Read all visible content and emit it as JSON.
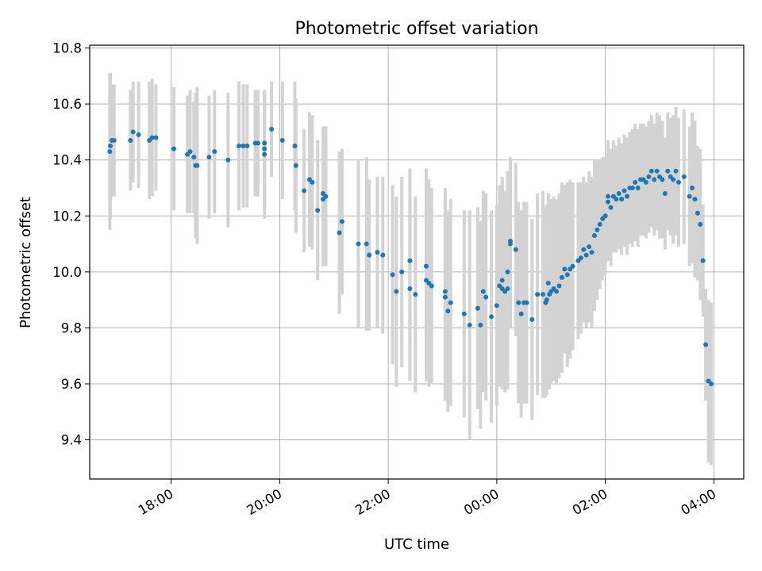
{
  "chart_data": {
    "type": "scatter",
    "title": "Photometric offset variation",
    "xlabel": "UTC time",
    "ylabel": "Photometric offset",
    "x_unit": "hours",
    "xlim": [
      16.5,
      28.55
    ],
    "ylim": [
      9.26,
      10.81
    ],
    "x_ticks": [
      {
        "value": 18,
        "label": "18:00"
      },
      {
        "value": 20,
        "label": "20:00"
      },
      {
        "value": 22,
        "label": "22:00"
      },
      {
        "value": 24,
        "label": "00:00"
      },
      {
        "value": 26,
        "label": "02:00"
      },
      {
        "value": 28,
        "label": "04:00"
      }
    ],
    "y_ticks": [
      {
        "value": 9.4,
        "label": "9.4"
      },
      {
        "value": 9.6,
        "label": "9.6"
      },
      {
        "value": 9.8,
        "label": "9.8"
      },
      {
        "value": 10.0,
        "label": "10.0"
      },
      {
        "value": 10.2,
        "label": "10.2"
      },
      {
        "value": 10.4,
        "label": "10.4"
      },
      {
        "value": 10.6,
        "label": "10.6"
      },
      {
        "value": 10.8,
        "label": "10.8"
      }
    ],
    "grid": true,
    "colors": {
      "points": "#1f77b4",
      "errorbars": "#d3d3d3",
      "grid": "#b0b0b0"
    },
    "series": [
      {
        "points": [
          [
            16.87,
            10.43,
            0.28
          ],
          [
            16.88,
            10.45,
            0.26
          ],
          [
            16.91,
            10.47,
            0.2
          ],
          [
            16.95,
            10.47,
            0.2
          ],
          [
            17.25,
            10.47,
            0.18
          ],
          [
            17.3,
            10.5,
            0.18
          ],
          [
            17.4,
            10.49,
            0.19
          ],
          [
            17.6,
            10.47,
            0.21
          ],
          [
            17.65,
            10.48,
            0.21
          ],
          [
            17.72,
            10.48,
            0.19
          ],
          [
            18.05,
            10.44,
            0.22
          ],
          [
            18.3,
            10.42,
            0.21
          ],
          [
            18.35,
            10.43,
            0.22
          ],
          [
            18.42,
            10.41,
            0.2
          ],
          [
            18.45,
            10.38,
            0.26
          ],
          [
            18.48,
            10.38,
            0.28
          ],
          [
            18.7,
            10.41,
            0.22
          ],
          [
            18.8,
            10.43,
            0.22
          ],
          [
            19.05,
            10.4,
            0.24
          ],
          [
            19.25,
            10.45,
            0.23
          ],
          [
            19.33,
            10.45,
            0.22
          ],
          [
            19.4,
            10.45,
            0.22
          ],
          [
            19.55,
            10.46,
            0.19
          ],
          [
            19.6,
            10.46,
            0.19
          ],
          [
            19.72,
            10.42,
            0.23
          ],
          [
            19.72,
            10.44,
            0.21
          ],
          [
            19.72,
            10.46,
            0.19
          ],
          [
            19.85,
            10.51,
            0.17
          ],
          [
            20.05,
            10.47,
            0.21
          ],
          [
            20.28,
            10.45,
            0.23
          ],
          [
            20.3,
            10.38,
            0.24
          ],
          [
            20.45,
            10.29,
            0.22
          ],
          [
            20.55,
            10.33,
            0.24
          ],
          [
            20.6,
            10.32,
            0.24
          ],
          [
            20.7,
            10.22,
            0.25
          ],
          [
            20.8,
            10.26,
            0.24
          ],
          [
            20.85,
            10.27,
            0.25
          ],
          [
            20.8,
            10.28,
            0.24
          ],
          [
            21.1,
            10.14,
            0.29
          ],
          [
            21.15,
            10.18,
            0.26
          ],
          [
            21.45,
            10.1,
            0.3
          ],
          [
            21.6,
            10.1,
            0.31
          ],
          [
            21.65,
            10.06,
            0.27
          ],
          [
            21.8,
            10.07,
            0.27
          ],
          [
            21.9,
            10.06,
            0.28
          ],
          [
            22.08,
            9.99,
            0.32
          ],
          [
            22.15,
            9.93,
            0.34
          ],
          [
            22.25,
            10.0,
            0.34
          ],
          [
            22.4,
            10.04,
            0.33
          ],
          [
            22.4,
            9.94,
            0.33
          ],
          [
            22.5,
            9.92,
            0.35
          ],
          [
            22.7,
            9.97,
            0.36
          ],
          [
            22.7,
            10.02,
            0.35
          ],
          [
            22.75,
            9.96,
            0.37
          ],
          [
            22.8,
            9.95,
            0.35
          ],
          [
            23.05,
            9.91,
            0.37
          ],
          [
            23.05,
            9.93,
            0.37
          ],
          [
            23.1,
            9.86,
            0.36
          ],
          [
            23.15,
            9.89,
            0.37
          ],
          [
            23.4,
            9.85,
            0.37
          ],
          [
            23.5,
            9.81,
            0.41
          ],
          [
            23.65,
            9.87,
            0.36
          ],
          [
            23.7,
            9.81,
            0.37
          ],
          [
            23.75,
            9.93,
            0.36
          ],
          [
            23.8,
            9.91,
            0.37
          ],
          [
            23.9,
            9.84,
            0.38
          ],
          [
            24.0,
            9.88,
            0.36
          ],
          [
            24.05,
            9.95,
            0.36
          ],
          [
            24.1,
            9.97,
            0.37
          ],
          [
            24.1,
            9.94,
            0.36
          ],
          [
            24.15,
            9.93,
            0.36
          ],
          [
            24.2,
            10.0,
            0.36
          ],
          [
            24.2,
            9.94,
            0.36
          ],
          [
            24.25,
            10.11,
            0.3
          ],
          [
            24.25,
            10.1,
            0.3
          ],
          [
            24.35,
            10.08,
            0.31
          ],
          [
            24.4,
            9.89,
            0.36
          ],
          [
            24.45,
            9.85,
            0.37
          ],
          [
            24.5,
            9.89,
            0.36
          ],
          [
            24.55,
            9.89,
            0.36
          ],
          [
            24.65,
            9.83,
            0.36
          ],
          [
            24.75,
            9.92,
            0.36
          ],
          [
            24.85,
            9.92,
            0.37
          ],
          [
            24.9,
            9.89,
            0.34
          ],
          [
            24.92,
            9.9,
            0.34
          ],
          [
            24.95,
            9.96,
            0.32
          ],
          [
            24.97,
            9.92,
            0.34
          ],
          [
            25.0,
            9.93,
            0.33
          ],
          [
            25.05,
            9.94,
            0.33
          ],
          [
            25.1,
            9.93,
            0.33
          ],
          [
            25.15,
            9.95,
            0.33
          ],
          [
            25.2,
            9.98,
            0.34
          ],
          [
            25.25,
            10.01,
            0.3
          ],
          [
            25.3,
            9.99,
            0.33
          ],
          [
            25.35,
            10.01,
            0.32
          ],
          [
            25.4,
            10.02,
            0.3
          ],
          [
            25.5,
            10.04,
            0.28
          ],
          [
            25.55,
            10.05,
            0.27
          ],
          [
            25.6,
            10.08,
            0.26
          ],
          [
            25.65,
            10.06,
            0.26
          ],
          [
            25.7,
            10.09,
            0.27
          ],
          [
            25.75,
            10.07,
            0.27
          ],
          [
            25.8,
            10.13,
            0.27
          ],
          [
            25.85,
            10.15,
            0.25
          ],
          [
            25.9,
            10.17,
            0.23
          ],
          [
            25.95,
            10.19,
            0.22
          ],
          [
            26.0,
            10.2,
            0.21
          ],
          [
            26.05,
            10.27,
            0.2
          ],
          [
            26.05,
            10.25,
            0.21
          ],
          [
            26.1,
            10.23,
            0.21
          ],
          [
            26.15,
            10.27,
            0.2
          ],
          [
            26.2,
            10.26,
            0.19
          ],
          [
            26.25,
            10.28,
            0.2
          ],
          [
            26.3,
            10.26,
            0.2
          ],
          [
            26.35,
            10.29,
            0.2
          ],
          [
            26.4,
            10.27,
            0.21
          ],
          [
            26.45,
            10.3,
            0.2
          ],
          [
            26.5,
            10.3,
            0.21
          ],
          [
            26.55,
            10.32,
            0.21
          ],
          [
            26.6,
            10.3,
            0.21
          ],
          [
            26.65,
            10.33,
            0.2
          ],
          [
            26.7,
            10.33,
            0.2
          ],
          [
            26.75,
            10.32,
            0.2
          ],
          [
            26.8,
            10.34,
            0.2
          ],
          [
            26.85,
            10.36,
            0.2
          ],
          [
            26.9,
            10.33,
            0.2
          ],
          [
            26.95,
            10.36,
            0.21
          ],
          [
            27.0,
            10.34,
            0.22
          ],
          [
            27.05,
            10.33,
            0.21
          ],
          [
            27.1,
            10.28,
            0.2
          ],
          [
            27.15,
            10.36,
            0.21
          ],
          [
            27.2,
            10.34,
            0.21
          ],
          [
            27.25,
            10.33,
            0.23
          ],
          [
            27.3,
            10.36,
            0.23
          ],
          [
            27.35,
            10.32,
            0.23
          ],
          [
            27.45,
            10.34,
            0.24
          ],
          [
            27.55,
            10.27,
            0.25
          ],
          [
            27.6,
            10.3,
            0.27
          ],
          [
            27.65,
            10.26,
            0.28
          ],
          [
            27.7,
            10.21,
            0.24
          ],
          [
            27.75,
            10.17,
            0.27
          ],
          [
            27.8,
            10.04,
            0.2
          ],
          [
            27.85,
            9.74,
            0.2
          ],
          [
            27.9,
            9.61,
            0.29
          ],
          [
            27.95,
            9.6,
            0.29
          ]
        ]
      }
    ]
  }
}
